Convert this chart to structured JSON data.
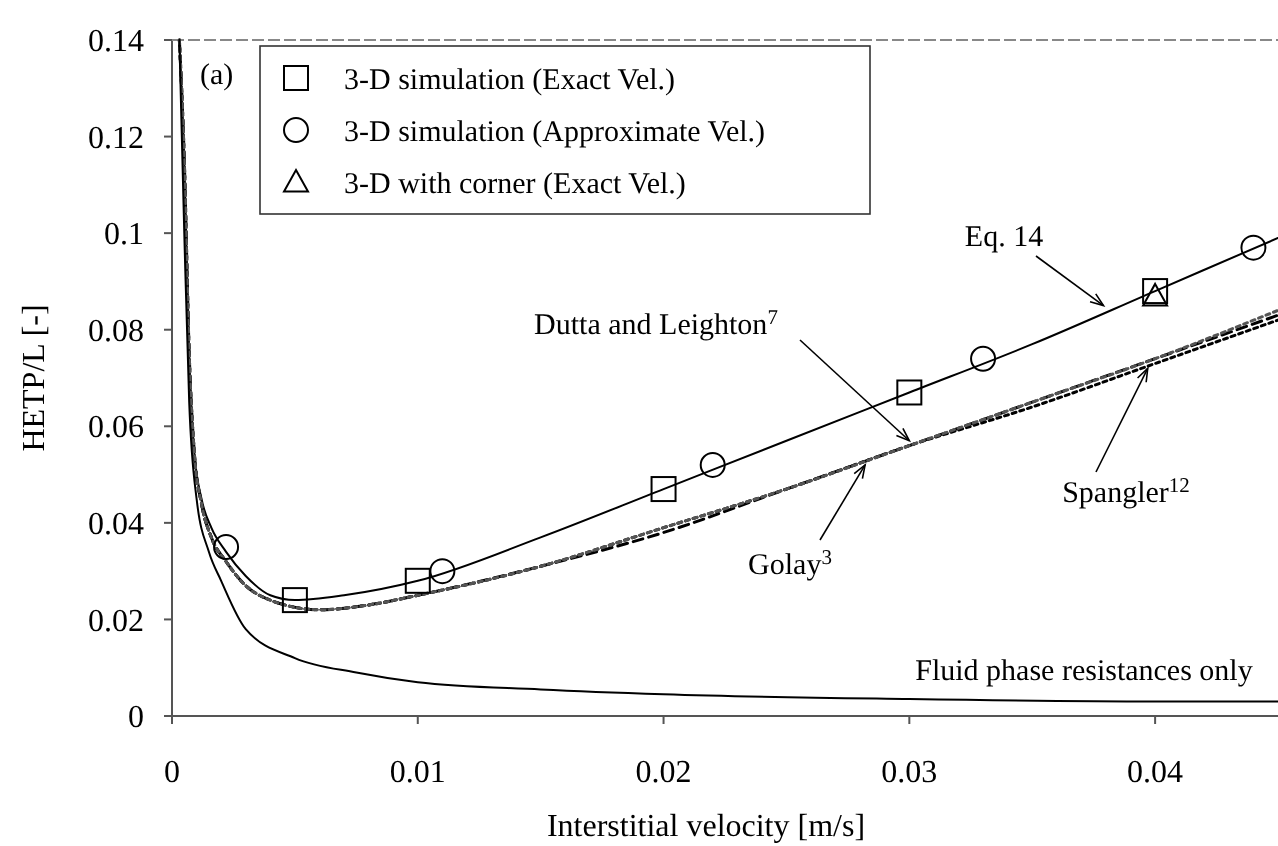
{
  "chart_data": {
    "type": "line",
    "xlabel": "Interstitial velocity [m/s]",
    "ylabel": "HETP/L [-]",
    "xlim": [
      0,
      0.045
    ],
    "ylim": [
      0,
      0.14
    ],
    "xticks": [
      0,
      0.01,
      0.02,
      0.03,
      0.04
    ],
    "yticks": [
      0,
      0.02,
      0.04,
      0.06,
      0.08,
      0.1,
      0.12,
      0.14
    ],
    "grid": false,
    "legend": "top left",
    "series": [
      {
        "type": "line",
        "color": "#000000",
        "line_style": "solid",
        "marker": "none",
        "x": [
          0.0003,
          0.0005,
          0.0007,
          0.0009,
          0.0012,
          0.0016,
          0.0022,
          0.003,
          0.004,
          0.005,
          0.007,
          0.01,
          0.015,
          0.02,
          0.025,
          0.03,
          0.035,
          0.04,
          0.045
        ],
        "values": [
          0.14,
          0.115,
          0.075,
          0.055,
          0.045,
          0.039,
          0.034,
          0.029,
          0.025,
          0.024,
          0.025,
          0.028,
          0.037,
          0.047,
          0.057,
          0.067,
          0.077,
          0.088,
          0.099
        ]
      },
      {
        "type": "line",
        "color": "#000000",
        "line_style": "dashed",
        "marker": "none",
        "x": [
          0.0003,
          0.0005,
          0.0007,
          0.0009,
          0.0012,
          0.0016,
          0.0022,
          0.003,
          0.004,
          0.006,
          0.008,
          0.01,
          0.015,
          0.02,
          0.025,
          0.03,
          0.035,
          0.04,
          0.045
        ],
        "values": [
          0.14,
          0.115,
          0.075,
          0.055,
          0.044,
          0.037,
          0.032,
          0.027,
          0.024,
          0.022,
          0.023,
          0.025,
          0.031,
          0.038,
          0.047,
          0.056,
          0.065,
          0.074,
          0.083
        ]
      },
      {
        "type": "line",
        "color": "#000000",
        "line_style": "dotted",
        "marker": "none",
        "x": [
          0.0003,
          0.0005,
          0.0007,
          0.0009,
          0.0012,
          0.0016,
          0.0022,
          0.003,
          0.004,
          0.006,
          0.008,
          0.01,
          0.015,
          0.02,
          0.025,
          0.03,
          0.035,
          0.04,
          0.045
        ],
        "values": [
          0.14,
          0.115,
          0.075,
          0.055,
          0.044,
          0.037,
          0.032,
          0.027,
          0.024,
          0.022,
          0.023,
          0.025,
          0.031,
          0.039,
          0.047,
          0.056,
          0.064,
          0.073,
          0.082
        ]
      },
      {
        "type": "line",
        "color": "#555555",
        "line_style": "dotted",
        "marker": "none",
        "x": [
          0.0003,
          0.0005,
          0.0007,
          0.0009,
          0.0012,
          0.0016,
          0.0022,
          0.003,
          0.004,
          0.006,
          0.008,
          0.01,
          0.015,
          0.02,
          0.025,
          0.03,
          0.035,
          0.04,
          0.045
        ],
        "values": [
          0.14,
          0.115,
          0.075,
          0.055,
          0.044,
          0.037,
          0.032,
          0.027,
          0.024,
          0.022,
          0.023,
          0.025,
          0.031,
          0.039,
          0.047,
          0.056,
          0.065,
          0.074,
          0.084
        ]
      },
      {
        "type": "line",
        "color": "#000000",
        "line_style": "solid",
        "marker": "none",
        "x": [
          0.0003,
          0.0005,
          0.0007,
          0.001,
          0.0015,
          0.002,
          0.003,
          0.005,
          0.0075,
          0.01,
          0.015,
          0.02,
          0.03,
          0.04,
          0.045
        ],
        "values": [
          0.14,
          0.1,
          0.065,
          0.045,
          0.034,
          0.028,
          0.018,
          0.012,
          0.009,
          0.007,
          0.0055,
          0.0045,
          0.0035,
          0.003,
          0.003
        ]
      },
      {
        "type": "scatter",
        "name": "3-D simulation (Exact Vel.)",
        "color": "#000000",
        "marker": "square",
        "x": [
          0.005,
          0.01,
          0.02,
          0.03,
          0.04
        ],
        "values": [
          0.024,
          0.028,
          0.047,
          0.067,
          0.088
        ]
      },
      {
        "type": "scatter",
        "name": "3-D simulation (Approximate Vel.)",
        "color": "#000000",
        "marker": "circle",
        "x": [
          0.0022,
          0.011,
          0.022,
          0.033,
          0.044
        ],
        "values": [
          0.035,
          0.03,
          0.052,
          0.074,
          0.097
        ]
      },
      {
        "type": "scatter",
        "name": "3-D with corner (Exact Vel.)",
        "color": "#000000",
        "marker": "triangle",
        "x": [
          0.04
        ],
        "values": [
          0.087
        ]
      }
    ],
    "annotations": [
      "(a)",
      {
        "text": "Eq. 14",
        "x": 0.0379,
        "y": 0.085
      },
      {
        "text": "Dutta and Leighton$^{7}$",
        "x": 0.03,
        "y": 0.057
      },
      {
        "text": "Golay$^{3}$",
        "x": 0.0282,
        "y": 0.052
      },
      {
        "text": "Spangler$^{12}$",
        "x": 0.0397,
        "y": 0.072
      },
      "Fluid phase resistances only"
    ]
  }
}
